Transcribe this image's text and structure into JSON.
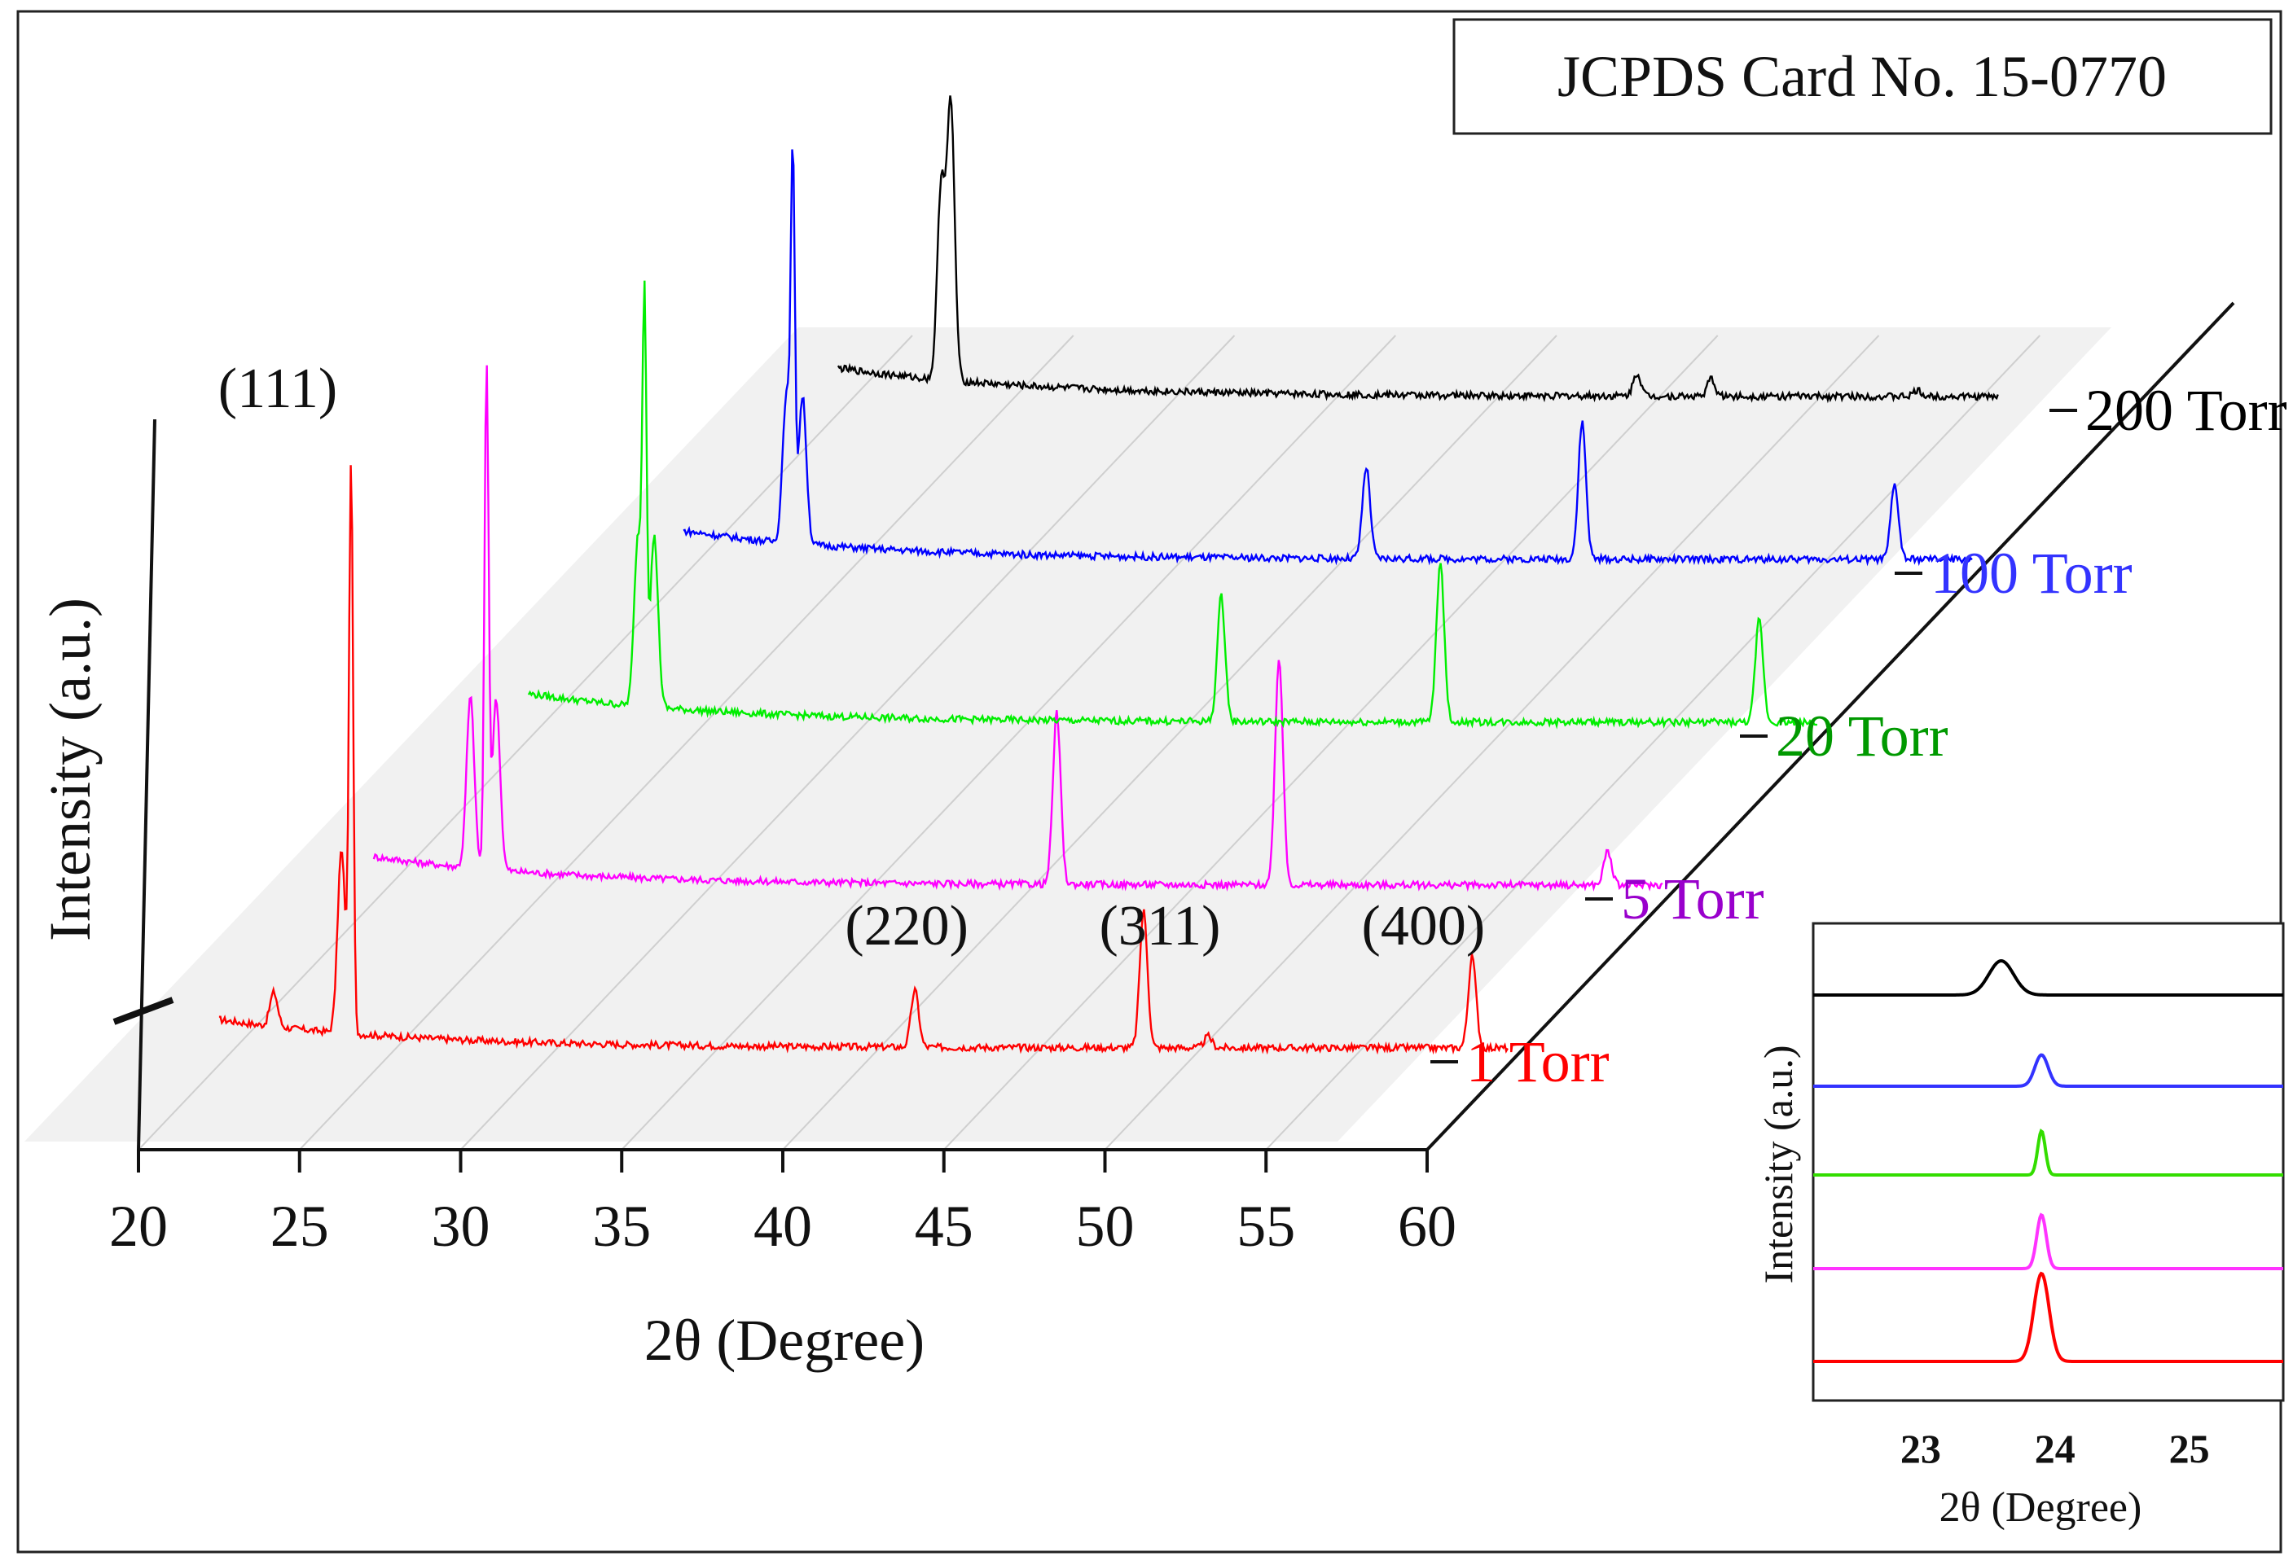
{
  "chart_data": [
    {
      "type": "line",
      "style": "waterfall-3d",
      "title": "",
      "card_label": "JCPDS Card No. 15-0770",
      "xlabel": "2θ (Degree)",
      "ylabel": "Intensity (a.u.)",
      "xlim": [
        20,
        60
      ],
      "xticks": [
        20,
        25,
        30,
        35,
        40,
        45,
        50,
        55,
        60
      ],
      "xtick_labels": [
        "20",
        "25",
        "30",
        "35",
        "40",
        "45",
        "50",
        "55",
        "60"
      ],
      "y_axis_break": true,
      "peak_labels": [
        {
          "label": "(111)",
          "x": 26.6
        },
        {
          "label": "(220)",
          "x": 44.1
        },
        {
          "label": "(311)",
          "x": 51.2
        },
        {
          "label": "(400)",
          "x": 61.4
        }
      ],
      "series": [
        {
          "name": "1 Torr",
          "color": "#ff0000",
          "label_color": "#ff0000",
          "x_start": 22.5,
          "x_end": 62.5,
          "peaks": [
            {
              "x": 24.2,
              "h": 0.06
            },
            {
              "x": 26.3,
              "h": 0.32
            },
            {
              "x": 26.6,
              "h": 1.0
            },
            {
              "x": 44.1,
              "h": 0.1
            },
            {
              "x": 51.2,
              "h": 0.24
            },
            {
              "x": 53.2,
              "h": 0.02
            },
            {
              "x": 61.4,
              "h": 0.16
            }
          ]
        },
        {
          "name": "5 Torr",
          "color": "#ff00ff",
          "label_color": "#9900cc",
          "x_start": 22.5,
          "x_end": 62.5,
          "peaks": [
            {
              "x": 25.5,
              "h": 0.3
            },
            {
              "x": 26.0,
              "h": 0.88
            },
            {
              "x": 26.3,
              "h": 0.3
            },
            {
              "x": 43.7,
              "h": 0.3
            },
            {
              "x": 50.6,
              "h": 0.4
            },
            {
              "x": 60.8,
              "h": 0.06
            }
          ]
        },
        {
          "name": "20 Torr",
          "color": "#00ee00",
          "label_color": "#009900",
          "x_start": 22.5,
          "x_end": 62.5,
          "peaks": [
            {
              "x": 25.9,
              "h": 0.3
            },
            {
              "x": 26.1,
              "h": 0.66
            },
            {
              "x": 26.4,
              "h": 0.3
            },
            {
              "x": 44.0,
              "h": 0.22
            },
            {
              "x": 50.8,
              "h": 0.28
            },
            {
              "x": 60.7,
              "h": 0.18
            }
          ]
        },
        {
          "name": "100 Torr",
          "color": "#0000ff",
          "label_color": "#3333ff",
          "x_start": 22.5,
          "x_end": 62.5,
          "peaks": [
            {
              "x": 25.7,
              "h": 0.26
            },
            {
              "x": 25.9,
              "h": 0.63
            },
            {
              "x": 26.2,
              "h": 0.26
            },
            {
              "x": 43.7,
              "h": 0.16
            },
            {
              "x": 50.4,
              "h": 0.24
            },
            {
              "x": 60.1,
              "h": 0.13
            }
          ]
        },
        {
          "name": "200 Torr",
          "color": "#000000",
          "label_color": "#000000",
          "x_start": 22.5,
          "x_end": 58.5,
          "peaks": [
            {
              "x": 25.7,
              "h": 0.34
            },
            {
              "x": 26.0,
              "h": 0.48
            },
            {
              "x": 47.3,
              "h": 0.04
            },
            {
              "x": 49.6,
              "h": 0.03
            },
            {
              "x": 56.0,
              "h": 0.01
            }
          ]
        }
      ]
    },
    {
      "type": "line",
      "style": "stacked-inset",
      "xlabel": "2θ (Degree)",
      "ylabel": "Intensity (a.u.)",
      "xlim": [
        22.2,
        25.7
      ],
      "xticks": [
        23,
        24,
        25
      ],
      "xtick_labels": [
        "23",
        "24",
        "25"
      ],
      "series": [
        {
          "name": "200 Torr",
          "color": "#000000",
          "peak_x": 23.6,
          "peak_h": 0.35,
          "width": 0.13
        },
        {
          "name": "100 Torr",
          "color": "#3333ff",
          "peak_x": 23.9,
          "peak_h": 0.32,
          "width": 0.07
        },
        {
          "name": "20 Torr",
          "color": "#33dd00",
          "peak_x": 23.9,
          "peak_h": 0.45,
          "width": 0.04
        },
        {
          "name": "5 Torr",
          "color": "#ff33ff",
          "peak_x": 23.9,
          "peak_h": 0.55,
          "width": 0.05
        },
        {
          "name": "1 Torr",
          "color": "#ff0000",
          "peak_x": 23.9,
          "peak_h": 0.9,
          "width": 0.08
        }
      ]
    }
  ]
}
